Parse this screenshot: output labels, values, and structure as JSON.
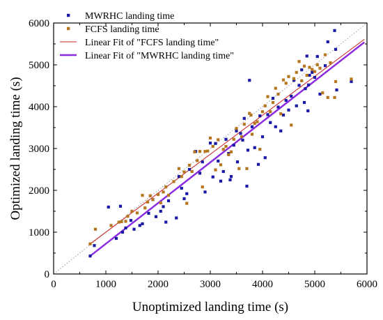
{
  "chart_data": {
    "type": "scatter",
    "title": "",
    "xlabel": "Unoptimized landing time (s)",
    "ylabel": "Optimized landing time (s)",
    "xlim": [
      0,
      6000
    ],
    "ylim": [
      0,
      6000
    ],
    "xticks": [
      "0",
      "1000",
      "2000",
      "3000",
      "4000",
      "5000",
      "6000"
    ],
    "yticks": [
      "0",
      "1000",
      "2000",
      "3000",
      "4000",
      "5000",
      "6000"
    ],
    "grid": false,
    "legend_position": "top-left",
    "identity_line": {
      "style": "dotted",
      "color": "#999999",
      "from": [
        0,
        0
      ],
      "to": [
        6000,
        6000
      ]
    },
    "series": [
      {
        "name": "MWRHC landing time",
        "kind": "scatter",
        "marker": "square",
        "color": "#1a1aa6",
        "points": [
          [
            700,
            430
          ],
          [
            780,
            680
          ],
          [
            1050,
            1600
          ],
          [
            1200,
            850
          ],
          [
            1280,
            1620
          ],
          [
            1320,
            1000
          ],
          [
            1380,
            1100
          ],
          [
            1480,
            1280
          ],
          [
            1540,
            1070
          ],
          [
            1650,
            1160
          ],
          [
            1700,
            1200
          ],
          [
            1820,
            1450
          ],
          [
            1900,
            1780
          ],
          [
            1960,
            1370
          ],
          [
            2050,
            1500
          ],
          [
            2100,
            1610
          ],
          [
            2150,
            1240
          ],
          [
            2200,
            1750
          ],
          [
            2350,
            1340
          ],
          [
            2400,
            2330
          ],
          [
            2450,
            2050
          ],
          [
            2500,
            1800
          ],
          [
            2550,
            1920
          ],
          [
            2600,
            2500
          ],
          [
            2720,
            2930
          ],
          [
            2800,
            2410
          ],
          [
            2850,
            2680
          ],
          [
            2900,
            1960
          ],
          [
            3000,
            3130
          ],
          [
            3050,
            2320
          ],
          [
            3100,
            3120
          ],
          [
            3150,
            2700
          ],
          [
            3200,
            2220
          ],
          [
            3250,
            2450
          ],
          [
            3300,
            3220
          ],
          [
            3350,
            2880
          ],
          [
            3380,
            2250
          ],
          [
            3400,
            2330
          ],
          [
            3450,
            3080
          ],
          [
            3500,
            3420
          ],
          [
            3520,
            2680
          ],
          [
            3580,
            3360
          ],
          [
            3620,
            3200
          ],
          [
            3650,
            3720
          ],
          [
            3700,
            2100
          ],
          [
            3720,
            2960
          ],
          [
            3750,
            4630
          ],
          [
            3800,
            3520
          ],
          [
            3850,
            3020
          ],
          [
            3920,
            2620
          ],
          [
            3950,
            3780
          ],
          [
            4000,
            3280
          ],
          [
            4050,
            2780
          ],
          [
            4100,
            3810
          ],
          [
            4150,
            3620
          ],
          [
            4200,
            4200
          ],
          [
            4250,
            3520
          ],
          [
            4300,
            3990
          ],
          [
            4350,
            3420
          ],
          [
            4400,
            3800
          ],
          [
            4450,
            4150
          ],
          [
            4500,
            3920
          ],
          [
            4550,
            4250
          ],
          [
            4600,
            4630
          ],
          [
            4650,
            4020
          ],
          [
            4700,
            4510
          ],
          [
            4750,
            4880
          ],
          [
            4800,
            4100
          ],
          [
            4820,
            4430
          ],
          [
            4850,
            5210
          ],
          [
            4870,
            3900
          ],
          [
            4880,
            4520
          ],
          [
            4900,
            4750
          ],
          [
            4950,
            4820
          ],
          [
            5000,
            4700
          ],
          [
            5050,
            5200
          ],
          [
            5100,
            4300
          ],
          [
            5200,
            4980
          ],
          [
            5250,
            5550
          ],
          [
            5380,
            5820
          ],
          [
            5400,
            5370
          ],
          [
            5420,
            4400
          ],
          [
            5700,
            4600
          ]
        ]
      },
      {
        "name": "FCFS landing time",
        "kind": "scatter",
        "marker": "square",
        "color": "#b5761f",
        "points": [
          [
            700,
            720
          ],
          [
            800,
            1070
          ],
          [
            1100,
            1160
          ],
          [
            1250,
            1240
          ],
          [
            1300,
            1250
          ],
          [
            1380,
            1260
          ],
          [
            1420,
            1380
          ],
          [
            1500,
            1500
          ],
          [
            1600,
            1460
          ],
          [
            1700,
            1880
          ],
          [
            1750,
            1580
          ],
          [
            1800,
            1720
          ],
          [
            1850,
            1870
          ],
          [
            1900,
            1780
          ],
          [
            2000,
            1900
          ],
          [
            2050,
            1700
          ],
          [
            2100,
            1960
          ],
          [
            2150,
            2080
          ],
          [
            2200,
            1880
          ],
          [
            2300,
            2210
          ],
          [
            2400,
            2520
          ],
          [
            2450,
            2330
          ],
          [
            2500,
            2440
          ],
          [
            2550,
            1690
          ],
          [
            2600,
            2600
          ],
          [
            2650,
            2450
          ],
          [
            2700,
            2920
          ],
          [
            2750,
            2710
          ],
          [
            2800,
            2930
          ],
          [
            2850,
            2080
          ],
          [
            2900,
            2930
          ],
          [
            2950,
            2940
          ],
          [
            3000,
            3250
          ],
          [
            3050,
            3050
          ],
          [
            3100,
            2490
          ],
          [
            3150,
            3210
          ],
          [
            3200,
            2610
          ],
          [
            3250,
            2980
          ],
          [
            3300,
            3050
          ],
          [
            3350,
            2850
          ],
          [
            3400,
            2920
          ],
          [
            3450,
            3220
          ],
          [
            3500,
            3480
          ],
          [
            3550,
            2520
          ],
          [
            3600,
            3280
          ],
          [
            3650,
            3580
          ],
          [
            3700,
            2520
          ],
          [
            3750,
            3840
          ],
          [
            3780,
            3800
          ],
          [
            3800,
            3340
          ],
          [
            3850,
            3600
          ],
          [
            3900,
            3640
          ],
          [
            3950,
            2980
          ],
          [
            4000,
            3880
          ],
          [
            4050,
            4020
          ],
          [
            4100,
            4240
          ],
          [
            4150,
            3880
          ],
          [
            4200,
            4100
          ],
          [
            4250,
            4440
          ],
          [
            4300,
            4300
          ],
          [
            4350,
            3830
          ],
          [
            4400,
            4640
          ],
          [
            4450,
            4560
          ],
          [
            4500,
            4720
          ],
          [
            4550,
            3560
          ],
          [
            4600,
            4670
          ],
          [
            4650,
            4820
          ],
          [
            4700,
            5080
          ],
          [
            4750,
            4620
          ],
          [
            4800,
            4970
          ],
          [
            4850,
            4750
          ],
          [
            4900,
            4940
          ],
          [
            4950,
            4890
          ],
          [
            5000,
            4840
          ],
          [
            5050,
            5000
          ],
          [
            5100,
            4920
          ],
          [
            5150,
            4330
          ],
          [
            5200,
            5240
          ],
          [
            5250,
            4220
          ],
          [
            5300,
            5050
          ],
          [
            5380,
            4220
          ],
          [
            5400,
            4600
          ],
          [
            5700,
            4660
          ]
        ]
      },
      {
        "name": "Linear Fit of \"FCFS landing time\"",
        "kind": "line",
        "color": "#c8201e",
        "width": 1,
        "x": [
          700,
          5950
        ],
        "y": [
          720,
          5610
        ]
      },
      {
        "name": "Linear Fit of \"MWRHC landing time\"",
        "kind": "line",
        "color": "#8a2be2",
        "width": 2.5,
        "x": [
          700,
          5950
        ],
        "y": [
          430,
          5540
        ]
      }
    ]
  }
}
